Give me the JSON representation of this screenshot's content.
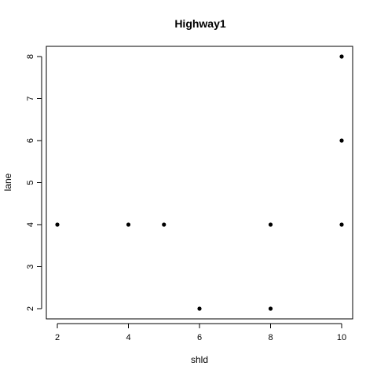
{
  "chart_data": {
    "type": "scatter",
    "title": "Highway1",
    "xlabel": "shld",
    "ylabel": "lane",
    "xlim": [
      2,
      10
    ],
    "ylim": [
      2,
      8
    ],
    "xticks": [
      2,
      4,
      6,
      8,
      10
    ],
    "yticks": [
      2,
      3,
      4,
      5,
      6,
      7,
      8
    ],
    "points": [
      {
        "x": 2,
        "y": 4
      },
      {
        "x": 4,
        "y": 4
      },
      {
        "x": 5,
        "y": 4
      },
      {
        "x": 6,
        "y": 2
      },
      {
        "x": 8,
        "y": 4
      },
      {
        "x": 8,
        "y": 2
      },
      {
        "x": 10,
        "y": 8
      },
      {
        "x": 10,
        "y": 6
      },
      {
        "x": 10,
        "y": 4
      }
    ],
    "grid": false,
    "legend": "none"
  }
}
